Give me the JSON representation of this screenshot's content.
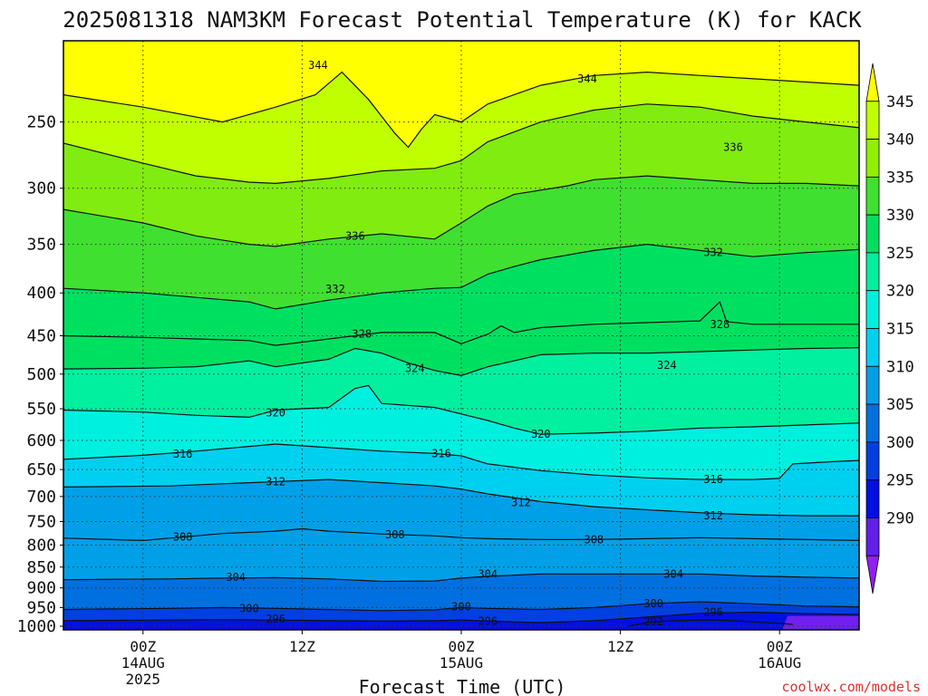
{
  "title": "2025081318 NAM3KM Forecast Potential Temperature (K) for KACK",
  "credit": "coolwx.com/models",
  "chart_data": {
    "type": "heatmap",
    "title": "2025081318 NAM3KM Forecast Potential Temperature (K) for KACK",
    "xlabel": "Forecast Time (UTC)",
    "ylabel": "",
    "x_range_hours": [
      -6,
      54
    ],
    "y_range_hpa": [
      1010,
      200
    ],
    "y_scale": "log",
    "grid": true,
    "x_ticks": [
      {
        "hour": 0,
        "lines": [
          "00Z",
          "14AUG",
          "2025"
        ]
      },
      {
        "hour": 12,
        "lines": [
          "12Z"
        ]
      },
      {
        "hour": 24,
        "lines": [
          "00Z",
          "15AUG"
        ]
      },
      {
        "hour": 36,
        "lines": [
          "12Z"
        ]
      },
      {
        "hour": 48,
        "lines": [
          "00Z",
          "16AUG"
        ]
      }
    ],
    "y_ticks": [
      "250",
      "300",
      "350",
      "400",
      "450",
      "500",
      "550",
      "600",
      "650",
      "700",
      "750",
      "800",
      "850",
      "900",
      "950",
      "1000"
    ],
    "colorbar": {
      "labels": [
        "345",
        "340",
        "335",
        "330",
        "325",
        "320",
        "315",
        "310",
        "305",
        "300",
        "295",
        "290"
      ],
      "colors": [
        "#ffff00",
        "#c0ff00",
        "#90f000",
        "#40e030",
        "#00e060",
        "#00f0a0",
        "#00f0e0",
        "#00d0f0",
        "#00a0e8",
        "#0070e0",
        "#0040e0",
        "#0010e0",
        "#6020e8",
        "#9020f0"
      ]
    },
    "ground_color": "#a0522d",
    "contours": [
      {
        "level": 292,
        "label": "292",
        "points": [
          [
            36.5,
            1000
          ],
          [
            37.2,
            996
          ],
          [
            38,
            990
          ],
          [
            40,
            985
          ],
          [
            42,
            983
          ],
          [
            44,
            984
          ],
          [
            46,
            988
          ],
          [
            48,
            992
          ],
          [
            49,
            995
          ]
        ]
      },
      {
        "level": 296,
        "label": "296",
        "points": [
          [
            -6,
            985
          ],
          [
            2,
            983
          ],
          [
            6,
            982
          ],
          [
            10,
            983
          ],
          [
            14,
            985
          ],
          [
            18,
            986
          ],
          [
            22,
            985
          ],
          [
            24,
            983
          ],
          [
            26,
            986
          ],
          [
            30,
            990
          ],
          [
            34,
            985
          ],
          [
            38,
            975
          ],
          [
            42,
            965
          ],
          [
            46,
            962
          ],
          [
            50,
            966
          ],
          [
            54,
            968
          ]
        ]
      },
      {
        "level": 300,
        "label": "300",
        "points": [
          [
            -6,
            955
          ],
          [
            2,
            952
          ],
          [
            6,
            950
          ],
          [
            10,
            952
          ],
          [
            14,
            955
          ],
          [
            18,
            958
          ],
          [
            22,
            956
          ],
          [
            24,
            950
          ],
          [
            26,
            952
          ],
          [
            30,
            955
          ],
          [
            34,
            950
          ],
          [
            38,
            940
          ],
          [
            42,
            935
          ],
          [
            46,
            940
          ],
          [
            50,
            946
          ],
          [
            54,
            948
          ]
        ]
      },
      {
        "level": 304,
        "label": "304",
        "points": [
          [
            -6,
            880
          ],
          [
            2,
            878
          ],
          [
            6,
            876
          ],
          [
            10,
            875
          ],
          [
            14,
            878
          ],
          [
            18,
            884
          ],
          [
            22,
            883
          ],
          [
            24,
            876
          ],
          [
            26,
            872
          ],
          [
            30,
            866
          ],
          [
            34,
            866
          ],
          [
            38,
            866
          ],
          [
            42,
            866
          ],
          [
            46,
            871
          ],
          [
            50,
            874
          ],
          [
            54,
            876
          ]
        ]
      },
      {
        "level": 308,
        "label": "308",
        "points": [
          [
            -6,
            785
          ],
          [
            0,
            790
          ],
          [
            2,
            785
          ],
          [
            6,
            775
          ],
          [
            10,
            770
          ],
          [
            12,
            765
          ],
          [
            14,
            770
          ],
          [
            18,
            776
          ],
          [
            22,
            780
          ],
          [
            24,
            784
          ],
          [
            26,
            786
          ],
          [
            30,
            788
          ],
          [
            34,
            788
          ],
          [
            38,
            786
          ],
          [
            42,
            784
          ],
          [
            46,
            786
          ],
          [
            50,
            788
          ],
          [
            54,
            790
          ]
        ]
      },
      {
        "level": 312,
        "label": "312",
        "points": [
          [
            -6,
            682
          ],
          [
            2,
            680
          ],
          [
            6,
            676
          ],
          [
            10,
            672
          ],
          [
            14,
            668
          ],
          [
            18,
            674
          ],
          [
            22,
            680
          ],
          [
            24,
            686
          ],
          [
            26,
            695
          ],
          [
            30,
            710
          ],
          [
            34,
            720
          ],
          [
            38,
            726
          ],
          [
            42,
            732
          ],
          [
            46,
            736
          ],
          [
            50,
            738
          ],
          [
            54,
            738
          ]
        ]
      },
      {
        "level": 316,
        "label": "316",
        "points": [
          [
            -6,
            632
          ],
          [
            0,
            625
          ],
          [
            4,
            618
          ],
          [
            8,
            610
          ],
          [
            10,
            606
          ],
          [
            14,
            612
          ],
          [
            18,
            618
          ],
          [
            22,
            622
          ],
          [
            24,
            626
          ],
          [
            26,
            640
          ],
          [
            30,
            652
          ],
          [
            34,
            660
          ],
          [
            38,
            665
          ],
          [
            42,
            668
          ],
          [
            46,
            668
          ],
          [
            48,
            666
          ],
          [
            49,
            640
          ],
          [
            52,
            636
          ],
          [
            54,
            634
          ]
        ]
      },
      {
        "level": 320,
        "label": "320",
        "points": [
          [
            -6,
            552
          ],
          [
            0,
            555
          ],
          [
            4,
            560
          ],
          [
            8,
            563
          ],
          [
            10,
            552
          ],
          [
            12,
            550
          ],
          [
            14,
            548
          ],
          [
            16,
            520
          ],
          [
            17,
            516
          ],
          [
            18,
            542
          ],
          [
            22,
            548
          ],
          [
            24,
            558
          ],
          [
            26,
            568
          ],
          [
            28,
            580
          ],
          [
            30,
            590
          ],
          [
            34,
            588
          ],
          [
            38,
            585
          ],
          [
            42,
            580
          ],
          [
            46,
            578
          ],
          [
            50,
            575
          ],
          [
            54,
            572
          ]
        ]
      },
      {
        "level": 324,
        "label": "324",
        "points": [
          [
            -6,
            493
          ],
          [
            0,
            492
          ],
          [
            4,
            490
          ],
          [
            8,
            482
          ],
          [
            10,
            490
          ],
          [
            14,
            480
          ],
          [
            16,
            466
          ],
          [
            18,
            472
          ],
          [
            20,
            485
          ],
          [
            22,
            495
          ],
          [
            24,
            502
          ],
          [
            26,
            490
          ],
          [
            28,
            482
          ],
          [
            30,
            474
          ],
          [
            34,
            472
          ],
          [
            38,
            472
          ],
          [
            42,
            470
          ],
          [
            46,
            468
          ],
          [
            50,
            466
          ],
          [
            54,
            465
          ]
        ]
      },
      {
        "level": 328,
        "label": "328",
        "points": [
          [
            -6,
            450
          ],
          [
            0,
            452
          ],
          [
            4,
            454
          ],
          [
            8,
            456
          ],
          [
            10,
            462
          ],
          [
            14,
            454
          ],
          [
            18,
            446
          ],
          [
            22,
            446
          ],
          [
            24,
            460
          ],
          [
            26,
            448
          ],
          [
            27,
            438
          ],
          [
            28,
            446
          ],
          [
            30,
            440
          ],
          [
            34,
            436
          ],
          [
            38,
            434
          ],
          [
            42,
            432
          ],
          [
            43.5,
            410
          ],
          [
            44,
            433
          ],
          [
            46,
            436
          ],
          [
            50,
            436
          ],
          [
            54,
            436
          ]
        ]
      },
      {
        "level": 332,
        "label": "332",
        "points": [
          [
            -6,
            395
          ],
          [
            0,
            400
          ],
          [
            4,
            405
          ],
          [
            8,
            410
          ],
          [
            10,
            418
          ],
          [
            14,
            408
          ],
          [
            18,
            400
          ],
          [
            22,
            395
          ],
          [
            24,
            394
          ],
          [
            26,
            380
          ],
          [
            28,
            372
          ],
          [
            30,
            365
          ],
          [
            34,
            356
          ],
          [
            38,
            350
          ],
          [
            42,
            356
          ],
          [
            46,
            362
          ],
          [
            50,
            358
          ],
          [
            54,
            355
          ]
        ]
      },
      {
        "level": 336,
        "label": "336",
        "points": [
          [
            -6,
            318
          ],
          [
            0,
            330
          ],
          [
            4,
            342
          ],
          [
            8,
            350
          ],
          [
            10,
            352
          ],
          [
            14,
            345
          ],
          [
            18,
            340
          ],
          [
            22,
            345
          ],
          [
            24,
            330
          ],
          [
            26,
            315
          ],
          [
            28,
            305
          ],
          [
            32,
            298
          ],
          [
            34,
            293
          ],
          [
            38,
            290
          ],
          [
            42,
            293
          ],
          [
            46,
            296
          ],
          [
            50,
            296
          ],
          [
            54,
            298
          ]
        ]
      },
      {
        "level": 340,
        "label": "",
        "points": [
          [
            -6,
            265
          ],
          [
            0,
            280
          ],
          [
            4,
            290
          ],
          [
            8,
            295
          ],
          [
            10,
            296
          ],
          [
            14,
            292
          ],
          [
            18,
            286
          ],
          [
            22,
            284
          ],
          [
            24,
            278
          ],
          [
            26,
            264
          ],
          [
            30,
            250
          ],
          [
            34,
            242
          ],
          [
            38,
            238
          ],
          [
            42,
            240
          ],
          [
            46,
            246
          ],
          [
            50,
            250
          ],
          [
            54,
            254
          ]
        ]
      },
      {
        "level": 344,
        "label": "344",
        "points": [
          [
            -6,
            232
          ],
          [
            0,
            240
          ],
          [
            6,
            250
          ],
          [
            10,
            240
          ],
          [
            13,
            232
          ],
          [
            15,
            218
          ],
          [
            17,
            235
          ],
          [
            19,
            258
          ],
          [
            20,
            268
          ],
          [
            21,
            255
          ],
          [
            22,
            245
          ],
          [
            24,
            250
          ],
          [
            26,
            238
          ],
          [
            30,
            226
          ],
          [
            34,
            220
          ],
          [
            38,
            218
          ],
          [
            42,
            220
          ],
          [
            46,
            222
          ],
          [
            50,
            224
          ],
          [
            54,
            226
          ]
        ]
      }
    ],
    "contour_labels": [
      {
        "level": 344,
        "hour": 13.2,
        "p": 214
      },
      {
        "level": 344,
        "hour": 33.5,
        "p": 222
      },
      {
        "level": 336,
        "hour": 44.5,
        "p": 268
      },
      {
        "level": 336,
        "hour": 16,
        "p": 342
      },
      {
        "level": 332,
        "hour": 43,
        "p": 358
      },
      {
        "level": 332,
        "hour": 14.5,
        "p": 396
      },
      {
        "level": 328,
        "hour": 16.5,
        "p": 448
      },
      {
        "level": 328,
        "hour": 43.5,
        "p": 436
      },
      {
        "level": 324,
        "hour": 20.5,
        "p": 492
      },
      {
        "level": 324,
        "hour": 39.5,
        "p": 488
      },
      {
        "level": 320,
        "hour": 10,
        "p": 556
      },
      {
        "level": 320,
        "hour": 30,
        "p": 590
      },
      {
        "level": 316,
        "hour": 3,
        "p": 623
      },
      {
        "level": 316,
        "hour": 22.5,
        "p": 622
      },
      {
        "level": 316,
        "hour": 43,
        "p": 668
      },
      {
        "level": 312,
        "hour": 10,
        "p": 672
      },
      {
        "level": 312,
        "hour": 28.5,
        "p": 712
      },
      {
        "level": 312,
        "hour": 43,
        "p": 738
      },
      {
        "level": 308,
        "hour": 3,
        "p": 782
      },
      {
        "level": 308,
        "hour": 19,
        "p": 778
      },
      {
        "level": 308,
        "hour": 34,
        "p": 788
      },
      {
        "level": 304,
        "hour": 7,
        "p": 874
      },
      {
        "level": 304,
        "hour": 26,
        "p": 866
      },
      {
        "level": 304,
        "hour": 40,
        "p": 866
      },
      {
        "level": 300,
        "hour": 8,
        "p": 952
      },
      {
        "level": 300,
        "hour": 24,
        "p": 948
      },
      {
        "level": 300,
        "hour": 38.5,
        "p": 940
      },
      {
        "level": 296,
        "hour": 10,
        "p": 980
      },
      {
        "level": 296,
        "hour": 26,
        "p": 986
      },
      {
        "level": 296,
        "hour": 43,
        "p": 962
      },
      {
        "level": 292,
        "hour": 38.5,
        "p": 988
      }
    ]
  }
}
